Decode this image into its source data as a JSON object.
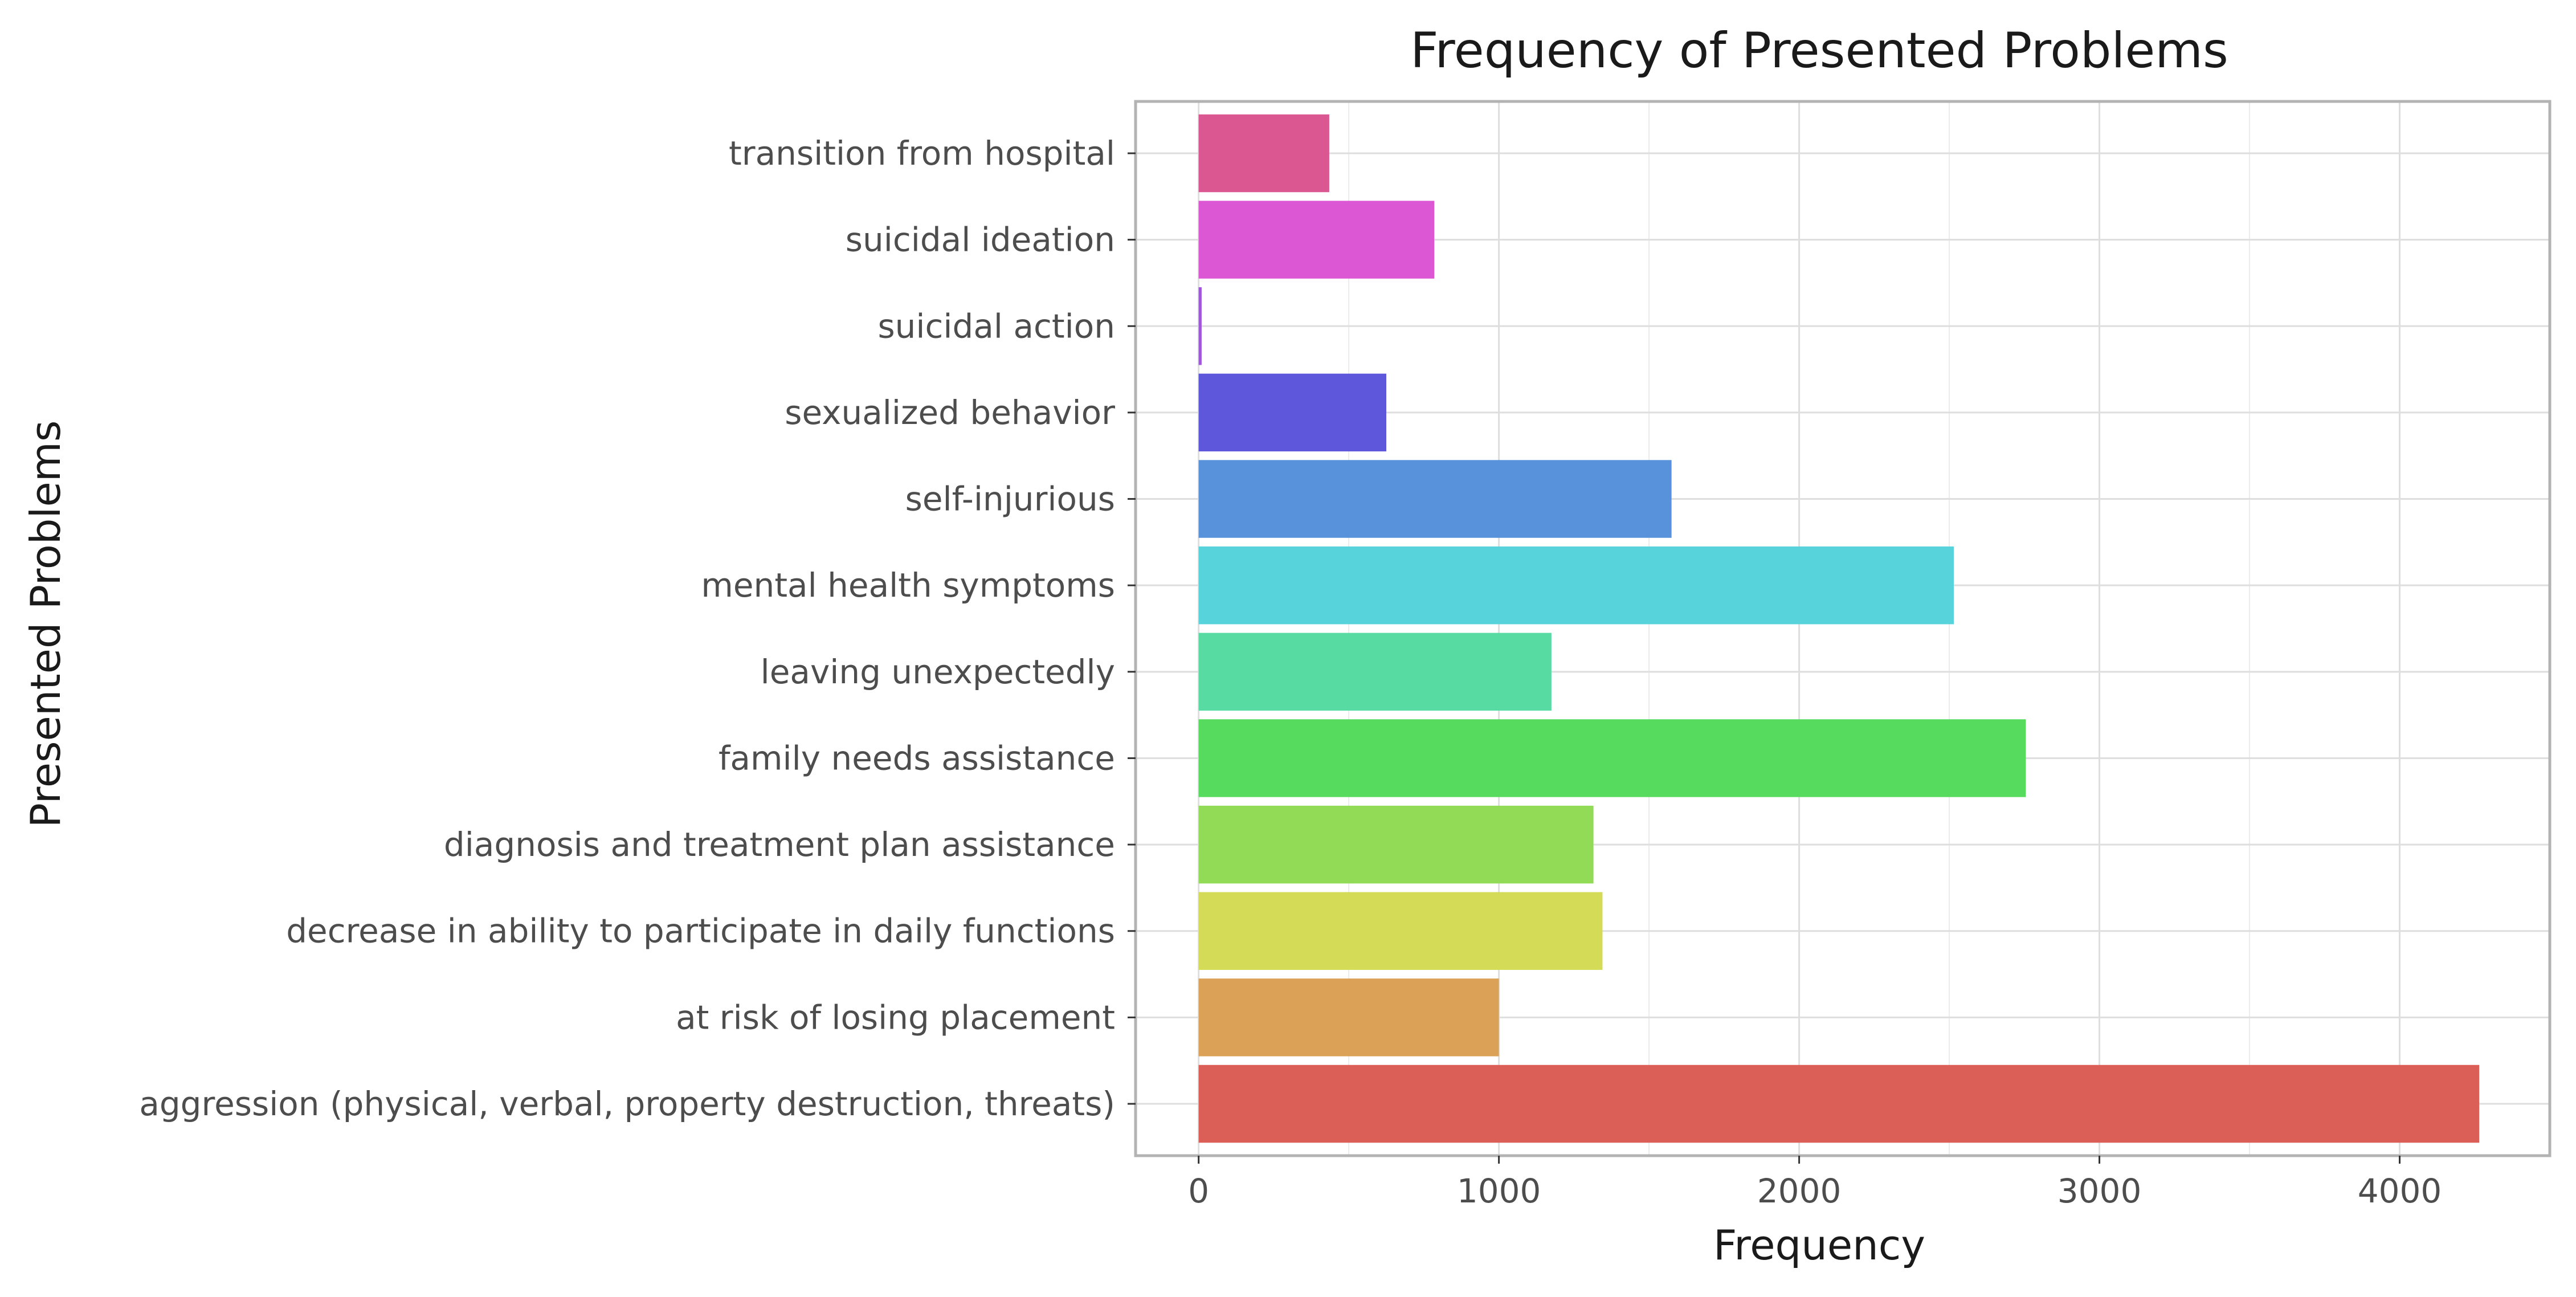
{
  "chart_data": {
    "type": "bar",
    "orientation": "horizontal",
    "title": "Frequency of Presented Problems",
    "xlabel": "Frequency",
    "ylabel": "Presented Problems",
    "categories": [
      "aggression (physical, verbal, property destruction, threats)",
      "at risk of losing placement",
      "decrease in ability to participate in daily functions",
      "diagnosis and treatment plan assistance",
      "family needs assistance",
      "leaving unexpectedly",
      "mental health symptoms",
      "self-injurious ",
      "sexualized behavior",
      "suicidal action",
      "suicidal ideation",
      "transition from hospital"
    ],
    "values": [
      4265,
      1000,
      1345,
      1315,
      2755,
      1175,
      2515,
      1575,
      625,
      10,
      785,
      435
    ],
    "colors": [
      "#db5f57",
      "#dba257",
      "#d3db57",
      "#91db57",
      "#57db5f",
      "#57dba2",
      "#57d3db",
      "#5792db",
      "#5f57db",
      "#a157db",
      "#db57d3",
      "#db5791"
    ],
    "xlim": [
      -210,
      4500
    ],
    "xticks": [
      0,
      1000,
      2000,
      3000,
      4000
    ],
    "grid": true,
    "legend": "none"
  }
}
